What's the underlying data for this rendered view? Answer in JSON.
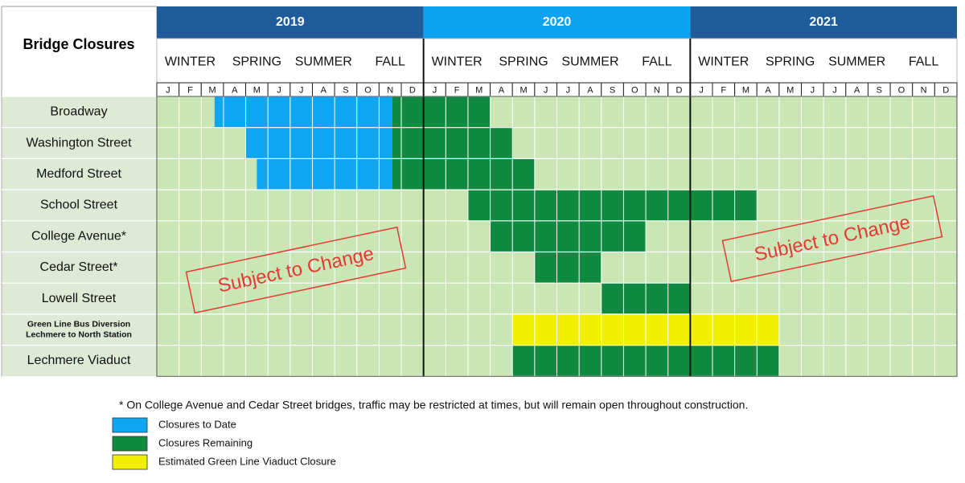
{
  "chart_data": {
    "type": "gantt",
    "title": "Bridge Closures",
    "xlim": [
      0,
      36
    ],
    "years": [
      {
        "label": "2019",
        "color": "#1f5c99"
      },
      {
        "label": "2020",
        "color": "#0ba2f0"
      },
      {
        "label": "2021",
        "color": "#1f5c99"
      }
    ],
    "seasons": [
      "WINTER",
      "SPRING",
      "SUMMER",
      "FALL"
    ],
    "months": [
      "J",
      "F",
      "M",
      "A",
      "M",
      "J",
      "J",
      "A",
      "S",
      "O",
      "N",
      "D"
    ],
    "background_color": "#c9e6b4",
    "legend": [
      {
        "name": "Closures to Date",
        "color": "#0ea5f3"
      },
      {
        "name": "Closures Remaining",
        "color": "#0f8a40"
      },
      {
        "name": "Estimated Green Line Viaduct Closure",
        "color": "#f0f000"
      }
    ],
    "rows": [
      {
        "label": [
          "Broadway"
        ],
        "segments": [
          {
            "series": 0,
            "start": 2.6,
            "end": 10.6
          },
          {
            "series": 1,
            "start": 10.6,
            "end": 15
          }
        ]
      },
      {
        "label": [
          "Washington Street"
        ],
        "segments": [
          {
            "series": 0,
            "start": 4,
            "end": 10.6
          },
          {
            "series": 1,
            "start": 10.6,
            "end": 16
          }
        ]
      },
      {
        "label": [
          "Medford Street"
        ],
        "segments": [
          {
            "series": 0,
            "start": 4.5,
            "end": 10.6
          },
          {
            "series": 1,
            "start": 10.6,
            "end": 17
          }
        ]
      },
      {
        "label": [
          "School Street"
        ],
        "segments": [
          {
            "series": 1,
            "start": 14,
            "end": 27
          }
        ]
      },
      {
        "label": [
          "College Avenue*"
        ],
        "segments": [
          {
            "series": 1,
            "start": 15,
            "end": 22
          }
        ]
      },
      {
        "label": [
          "Cedar Street*"
        ],
        "segments": [
          {
            "series": 1,
            "start": 17,
            "end": 20
          }
        ]
      },
      {
        "label": [
          "Lowell Street"
        ],
        "segments": [
          {
            "series": 1,
            "start": 20,
            "end": 24
          }
        ]
      },
      {
        "label": [
          "Green Line Bus Diversion",
          "Lechmere to North Station"
        ],
        "segments": [
          {
            "series": 2,
            "start": 16,
            "end": 28
          }
        ]
      },
      {
        "label": [
          "Lechmere Viaduct"
        ],
        "segments": [
          {
            "series": 1,
            "start": 16,
            "end": 28
          }
        ]
      }
    ],
    "annotations": [
      "Subject to Change",
      "Subject to Change"
    ],
    "footnote": "* On College Avenue and Cedar Street bridges, traffic may be restricted at times, but will remain open throughout construction."
  }
}
